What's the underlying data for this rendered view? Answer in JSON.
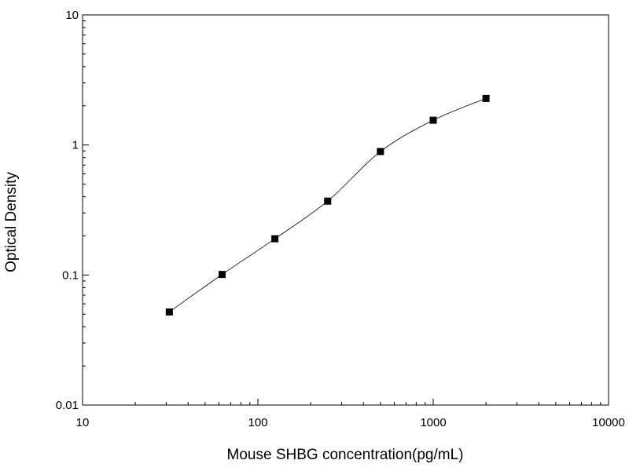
{
  "chart_data": {
    "type": "scatter",
    "title": "",
    "xlabel": "Mouse SHBG concentration(pg/mL)",
    "ylabel": "Optical Density",
    "xscale": "log",
    "yscale": "log",
    "xlim": [
      10,
      10000
    ],
    "ylim": [
      0.01,
      10
    ],
    "xticks": [
      "10",
      "100",
      "1000",
      "10000"
    ],
    "yticks": [
      "0.01",
      "0.1",
      "1",
      "10"
    ],
    "grid": false,
    "legend": "none",
    "series": [
      {
        "marker": "square",
        "color": "#000000",
        "x": [
          31.25,
          62.5,
          125,
          250,
          500,
          1000,
          2000
        ],
        "y": [
          0.052,
          0.101,
          0.19,
          0.37,
          0.89,
          1.55,
          2.28
        ]
      }
    ],
    "fit_curve": {
      "style": "solid",
      "color": "#000000"
    }
  }
}
